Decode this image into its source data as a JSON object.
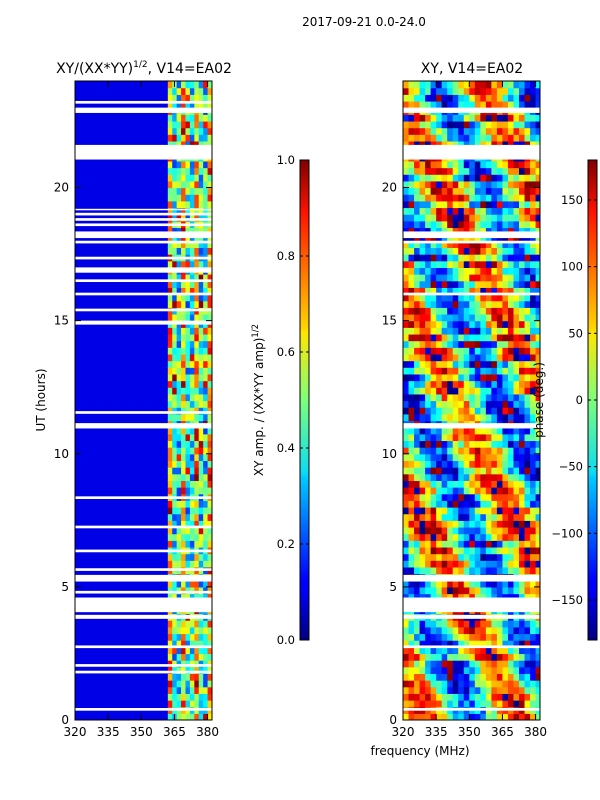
{
  "figure": {
    "suptitle": "2017-09-21 0.0-24.0",
    "xlabel": "frequency (MHz)"
  },
  "chart_data": [
    {
      "type": "heatmap",
      "title_main": "XY/(XX*YY)",
      "title_sup": "1/2",
      "title_tail": ", V14=EA02",
      "xlabel": "frequency (MHz)",
      "ylabel": "UT (hours)",
      "xlim": [
        320,
        382
      ],
      "ylim": [
        0,
        24
      ],
      "xticks": [
        320,
        335,
        350,
        365,
        380
      ],
      "yticks": [
        0,
        5,
        10,
        15,
        20
      ],
      "colorbar": {
        "label_main": "XY amp. / (XX*YY amp)",
        "label_sup": "1/2",
        "range": [
          0.0,
          1.0
        ],
        "ticks": [
          "0.0",
          "0.2",
          "0.4",
          "0.6",
          "0.8",
          "1.0"
        ],
        "tick_values": [
          0.0,
          0.2,
          0.4,
          0.6,
          0.8,
          1.0
        ]
      },
      "flagged_hours": [
        [
          0.35,
          0.45
        ],
        [
          1.75,
          1.85
        ],
        [
          2.0,
          2.1
        ],
        [
          2.7,
          2.8
        ],
        [
          3.8,
          3.95
        ],
        [
          4.05,
          4.6
        ],
        [
          4.75,
          4.85
        ],
        [
          5.2,
          5.45
        ],
        [
          5.6,
          5.7
        ],
        [
          6.3,
          6.4
        ],
        [
          7.2,
          7.3
        ],
        [
          8.3,
          8.4
        ],
        [
          10.95,
          11.15
        ],
        [
          11.5,
          11.6
        ],
        [
          14.85,
          15.0
        ],
        [
          15.35,
          15.45
        ],
        [
          15.95,
          16.05
        ],
        [
          16.45,
          16.55
        ],
        [
          16.8,
          17.0
        ],
        [
          17.3,
          17.4
        ],
        [
          17.9,
          18.0
        ],
        [
          18.1,
          18.35
        ],
        [
          18.55,
          18.65
        ],
        [
          18.75,
          18.85
        ],
        [
          18.95,
          19.05
        ],
        [
          19.15,
          19.2
        ],
        [
          21.05,
          21.6
        ],
        [
          22.8,
          23.0
        ],
        [
          23.15,
          23.25
        ]
      ],
      "note": "Normalized XY amplitude is near 0.05-0.2 (blue) below 362 MHz and 0.3-0.9 (cyan to red) in the 362-382 MHz band."
    },
    {
      "type": "heatmap",
      "title": "XY, V14=EA02",
      "xlabel": "frequency (MHz)",
      "xlim": [
        320,
        382
      ],
      "ylim": [
        0,
        24
      ],
      "xticks": [
        320,
        335,
        350,
        365,
        380
      ],
      "yticks": [
        0,
        5,
        10,
        15,
        20
      ],
      "colorbar": {
        "label": "phase (deg.)",
        "range": [
          -180,
          180
        ],
        "ticks": [
          "−150",
          "−100",
          "−50",
          "0",
          "50",
          "100",
          "150"
        ],
        "tick_values": [
          -150,
          -100,
          -50,
          0,
          50,
          100,
          150
        ]
      },
      "flagged_hours": [
        [
          0.35,
          0.45
        ],
        [
          2.7,
          2.8
        ],
        [
          3.8,
          3.95
        ],
        [
          4.05,
          4.6
        ],
        [
          5.2,
          5.45
        ],
        [
          10.95,
          11.15
        ],
        [
          15.95,
          16.05
        ],
        [
          17.9,
          18.0
        ],
        [
          18.1,
          18.35
        ],
        [
          21.05,
          21.6
        ],
        [
          22.8,
          23.0
        ]
      ],
      "note": "XY phase spans the full -180 to 180 degree range with broad frequency-dependent stripes and noisy rows."
    }
  ]
}
